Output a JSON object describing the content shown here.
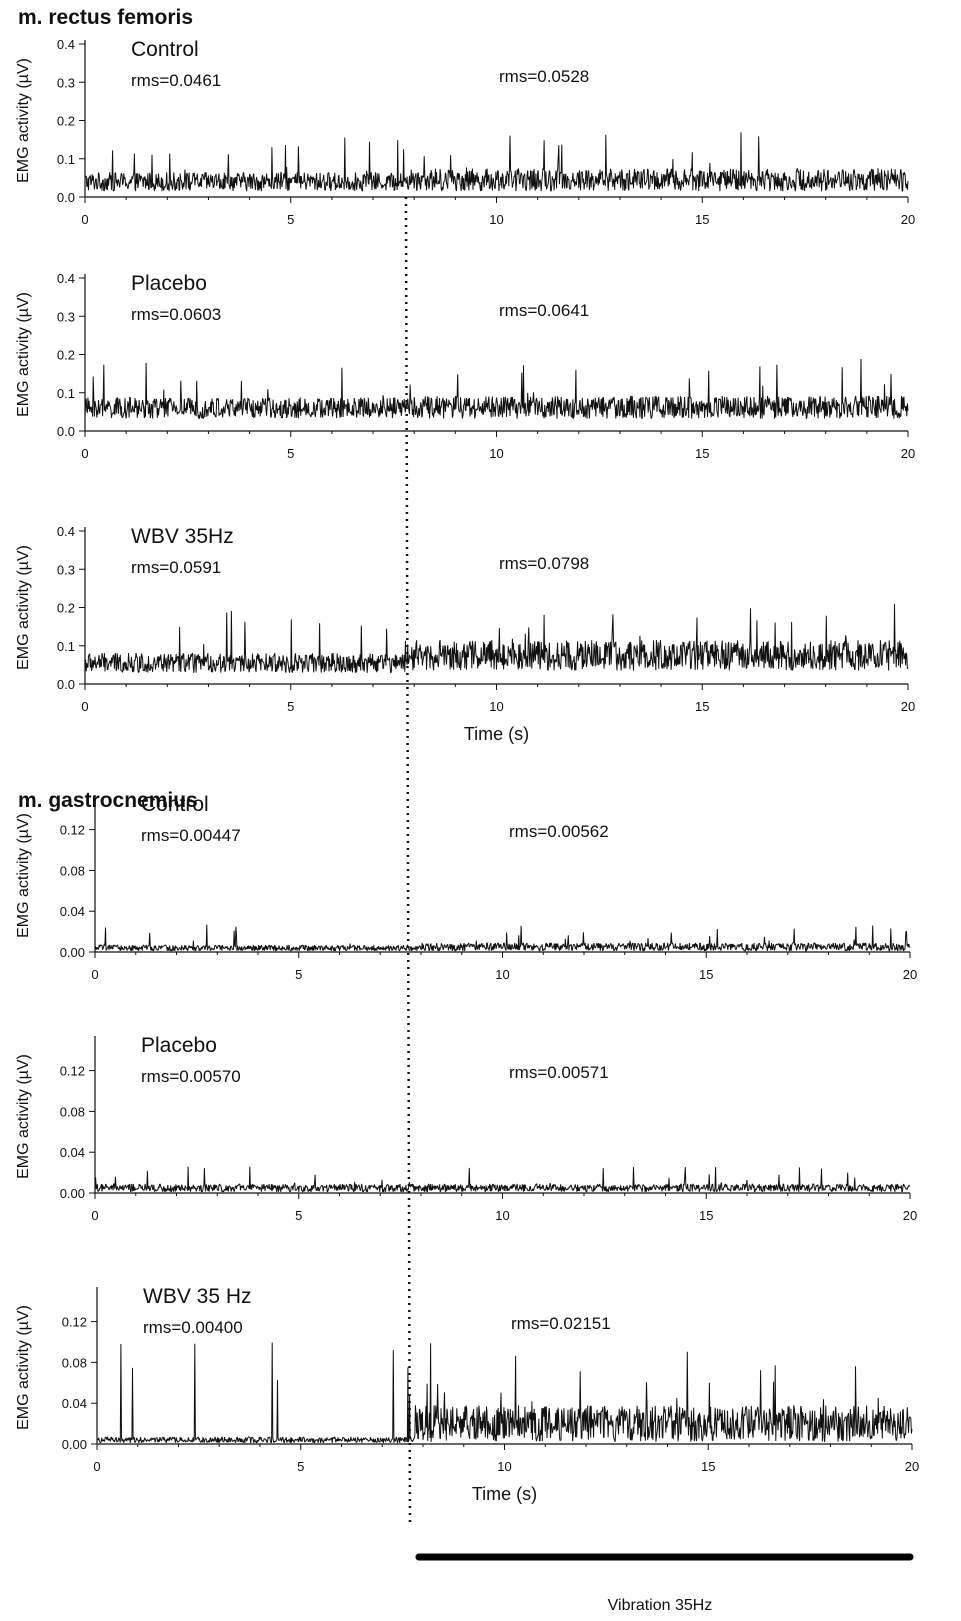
{
  "figure": {
    "vibration_onset_s": 7.8,
    "vibration_label": "Vibration 35Hz",
    "vibration_bar": {
      "start_s": 7.9,
      "end_s": 20
    }
  },
  "sections": [
    {
      "title": "m. rectus femoris"
    },
    {
      "title": "m. gastrocnemius"
    }
  ],
  "chart_data": [
    {
      "type": "line",
      "section": "m. rectus femoris",
      "condition_label": "Control",
      "rms_before": "rms=0.0461",
      "rms_after": "rms=0.0528",
      "ylabel": "EMG activity (µV)",
      "xlabel": "",
      "xlim": [
        0,
        20
      ],
      "ylim": [
        0,
        0.4
      ],
      "xticks": [
        "0",
        "5",
        "10",
        "15",
        "20"
      ],
      "yticks": [
        "0.0",
        "0.1",
        "0.2",
        "0.3",
        "0.4"
      ],
      "baseline_uV": 0.04,
      "spread_uV": 0.025,
      "post_baseline_uV": 0.045,
      "post_spread_uV": 0.03,
      "peak_uV": 0.17,
      "series": [
        {
          "name": "EMG"
        }
      ]
    },
    {
      "type": "line",
      "section": "m. rectus femoris",
      "condition_label": "Placebo",
      "rms_before": "rms=0.0603",
      "rms_after": "rms=0.0641",
      "ylabel": "EMG activity (µV)",
      "xlabel": "",
      "xlim": [
        0,
        20
      ],
      "ylim": [
        0,
        0.4
      ],
      "xticks": [
        "0",
        "5",
        "10",
        "15",
        "20"
      ],
      "yticks": [
        "0.0",
        "0.1",
        "0.2",
        "0.3",
        "0.4"
      ],
      "baseline_uV": 0.06,
      "spread_uV": 0.028,
      "post_baseline_uV": 0.062,
      "post_spread_uV": 0.03,
      "peak_uV": 0.19,
      "series": [
        {
          "name": "EMG"
        }
      ]
    },
    {
      "type": "line",
      "section": "m. rectus femoris",
      "condition_label": "WBV 35Hz",
      "rms_before": "rms=0.0591",
      "rms_after": "rms=0.0798",
      "ylabel": "EMG activity (µV)",
      "xlabel": "Time (s)",
      "xlim": [
        0,
        20
      ],
      "ylim": [
        0,
        0.4
      ],
      "xticks": [
        "0",
        "5",
        "10",
        "15",
        "20"
      ],
      "yticks": [
        "0.0",
        "0.1",
        "0.2",
        "0.3",
        "0.4"
      ],
      "baseline_uV": 0.055,
      "spread_uV": 0.026,
      "post_baseline_uV": 0.075,
      "post_spread_uV": 0.04,
      "peak_uV": 0.21,
      "series": [
        {
          "name": "EMG"
        }
      ]
    },
    {
      "type": "line",
      "section": "m. gastrocnemius",
      "condition_label": "Control",
      "rms_before": "rms=0.00447",
      "rms_after": "rms=0.00562",
      "ylabel": "EMG activity (µV)",
      "xlabel": "",
      "xlim": [
        0,
        20
      ],
      "ylim": [
        0,
        0.15
      ],
      "xticks": [
        "0",
        "5",
        "10",
        "15",
        "20"
      ],
      "yticks": [
        "0.00",
        "0.04",
        "0.08",
        "0.12"
      ],
      "baseline_uV": 0.004,
      "spread_uV": 0.003,
      "post_baseline_uV": 0.005,
      "post_spread_uV": 0.004,
      "peak_uV": 0.028,
      "series": [
        {
          "name": "EMG"
        }
      ]
    },
    {
      "type": "line",
      "section": "m. gastrocnemius",
      "condition_label": "Placebo",
      "rms_before": "rms=0.00570",
      "rms_after": "rms=0.00571",
      "ylabel": "EMG activity (µV)",
      "xlabel": "",
      "xlim": [
        0,
        20
      ],
      "ylim": [
        0,
        0.15
      ],
      "xticks": [
        "0",
        "5",
        "10",
        "15",
        "20"
      ],
      "yticks": [
        "0.00",
        "0.04",
        "0.08",
        "0.12"
      ],
      "baseline_uV": 0.005,
      "spread_uV": 0.004,
      "post_baseline_uV": 0.005,
      "post_spread_uV": 0.004,
      "peak_uV": 0.027,
      "series": [
        {
          "name": "EMG"
        }
      ]
    },
    {
      "type": "line",
      "section": "m. gastrocnemius",
      "condition_label": "WBV 35 Hz",
      "rms_before": "rms=0.00400",
      "rms_after": "rms=0.02151",
      "ylabel": "EMG activity (µV)",
      "xlabel": "Time (s)",
      "xlim": [
        0,
        20
      ],
      "ylim": [
        0,
        0.15
      ],
      "xticks": [
        "0",
        "5",
        "10",
        "15",
        "20"
      ],
      "yticks": [
        "0.00",
        "0.04",
        "0.08",
        "0.12"
      ],
      "baseline_uV": 0.004,
      "spread_uV": 0.003,
      "post_baseline_uV": 0.02,
      "post_spread_uV": 0.018,
      "peak_uV": 0.1,
      "series": [
        {
          "name": "EMG"
        }
      ]
    }
  ]
}
